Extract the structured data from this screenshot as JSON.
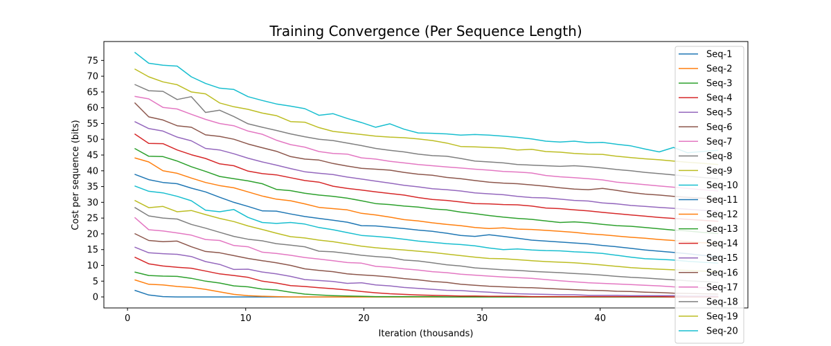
{
  "chart_data": {
    "type": "line",
    "title": "Training Convergence (Per Sequence Length)",
    "xlabel": "Iteration (thousands)",
    "ylabel": "Cost per sequence (bits)",
    "xlim": [
      -2,
      52.5
    ],
    "ylim": [
      -3.5,
      81
    ],
    "xticks": [
      0,
      10,
      20,
      30,
      40
    ],
    "yticks": [
      0,
      5,
      10,
      15,
      20,
      25,
      30,
      35,
      40,
      45,
      50,
      55,
      60,
      65,
      70,
      75
    ],
    "legend_position": "right",
    "grid": false,
    "x": [
      0.6,
      1.8,
      3.0,
      4.2,
      5.4,
      6.6,
      7.8,
      9.0,
      10.2,
      11.4,
      12.6,
      13.8,
      15.0,
      16.2,
      17.4,
      18.6,
      19.8,
      21.0,
      22.2,
      23.4,
      24.6,
      25.8,
      27.0,
      28.2,
      29.4,
      30.6,
      31.8,
      33.0,
      34.2,
      35.4,
      36.6,
      37.8,
      39.0,
      40.2,
      41.4,
      42.6,
      43.8,
      45.0,
      46.2,
      47.4,
      48.6,
      50.0
    ],
    "series": [
      {
        "name": "Seq-1",
        "color": "#1f77b4",
        "values": [
          2.1,
          0.6,
          0.1,
          0.0,
          0.0,
          0.0,
          0.0,
          0.0,
          0.0,
          0.0,
          0.0,
          0.0,
          0.0,
          0.0,
          0.0,
          0.0,
          0.0,
          0.0,
          0.0,
          0.0,
          0.0,
          0.0,
          0.0,
          0.0,
          0.0,
          0.0,
          0.0,
          0.0,
          0.0,
          0.0,
          0.0,
          0.0,
          0.0,
          0.0,
          0.0,
          0.0,
          0.0,
          0.0,
          0.0,
          0.0,
          0.0,
          0.0
        ]
      },
      {
        "name": "Seq-2",
        "color": "#ff7f0e",
        "values": [
          5.4,
          4.0,
          3.8,
          3.3,
          3.0,
          2.4,
          1.6,
          0.8,
          0.4,
          0.2,
          0.1,
          0.0,
          0.0,
          0.0,
          0.0,
          0.0,
          0.0,
          0.0,
          0.0,
          0.0,
          0.0,
          0.0,
          0.0,
          0.0,
          0.0,
          0.0,
          0.0,
          0.0,
          0.0,
          0.0,
          0.0,
          0.0,
          0.0,
          0.0,
          0.0,
          0.0,
          0.0,
          0.0,
          0.0,
          0.0,
          0.0,
          0.0
        ]
      },
      {
        "name": "Seq-3",
        "color": "#2ca02c",
        "values": [
          7.9,
          6.8,
          6.6,
          6.5,
          5.9,
          5.0,
          4.4,
          3.5,
          3.2,
          2.5,
          2.2,
          1.5,
          0.9,
          0.6,
          0.4,
          0.3,
          0.2,
          0.1,
          0.1,
          0.1,
          0.1,
          0.1,
          0.0,
          0.0,
          0.0,
          0.0,
          0.0,
          0.0,
          0.0,
          0.0,
          0.0,
          0.0,
          0.0,
          0.0,
          0.0,
          0.0,
          0.0,
          0.0,
          0.0,
          0.0,
          0.0,
          0.0
        ]
      },
      {
        "name": "Seq-4",
        "color": "#d62728",
        "values": [
          12.6,
          10.5,
          9.8,
          9.4,
          9.1,
          8.2,
          7.3,
          6.8,
          6.2,
          5.0,
          4.4,
          3.6,
          3.3,
          2.9,
          2.6,
          2.2,
          1.7,
          1.3,
          1.0,
          0.8,
          0.6,
          0.5,
          0.4,
          0.3,
          0.3,
          0.2,
          0.2,
          0.2,
          0.1,
          0.1,
          0.1,
          0.1,
          0.1,
          0.1,
          0.1,
          0.1,
          0.1,
          0.1,
          0.0,
          0.0,
          0.0,
          0.0
        ]
      },
      {
        "name": "Seq-5",
        "color": "#9467bd",
        "values": [
          15.8,
          14.0,
          13.7,
          13.5,
          12.8,
          11.2,
          10.3,
          8.7,
          8.8,
          7.9,
          7.3,
          6.5,
          5.5,
          5.2,
          4.9,
          4.3,
          4.5,
          3.8,
          3.5,
          3.0,
          2.7,
          2.4,
          2.1,
          2.0,
          1.7,
          1.5,
          1.2,
          1.0,
          0.9,
          0.8,
          0.7,
          0.7,
          0.5,
          0.5,
          0.5,
          0.4,
          0.4,
          0.4,
          0.4,
          0.3,
          0.3,
          0.3
        ]
      },
      {
        "name": "Seq-6",
        "color": "#8c564b",
        "values": [
          20.1,
          17.9,
          17.5,
          17.7,
          15.9,
          14.4,
          14.0,
          13.1,
          12.2,
          11.5,
          10.8,
          10.0,
          8.9,
          8.4,
          8.0,
          7.3,
          7.0,
          6.7,
          6.3,
          5.8,
          5.4,
          4.9,
          4.6,
          4.0,
          3.7,
          3.4,
          3.2,
          3.0,
          2.9,
          2.7,
          2.5,
          2.3,
          2.1,
          2.0,
          1.8,
          1.7,
          1.5,
          1.4,
          1.2,
          1.1,
          1.0,
          0.9
        ]
      },
      {
        "name": "Seq-7",
        "color": "#e377c2",
        "values": [
          25.2,
          21.3,
          20.9,
          20.3,
          19.6,
          18.2,
          17.9,
          16.3,
          15.9,
          14.2,
          13.8,
          13.2,
          12.5,
          12.0,
          11.5,
          10.9,
          10.7,
          9.7,
          9.4,
          8.9,
          8.5,
          8.0,
          7.7,
          7.2,
          6.9,
          6.6,
          6.3,
          6.1,
          5.9,
          5.5,
          5.1,
          4.8,
          4.5,
          4.3,
          4.1,
          3.9,
          3.7,
          3.5,
          3.2,
          3.0,
          2.9,
          2.7
        ]
      },
      {
        "name": "Seq-8",
        "color": "#7f7f7f",
        "values": [
          28.4,
          25.7,
          25.0,
          24.7,
          23.0,
          21.8,
          20.5,
          19.2,
          18.3,
          17.8,
          16.9,
          16.4,
          15.9,
          14.5,
          14.3,
          13.8,
          13.2,
          12.8,
          12.5,
          11.7,
          11.4,
          10.8,
          10.2,
          9.8,
          9.2,
          8.9,
          8.6,
          8.4,
          8.1,
          7.9,
          7.7,
          7.4,
          7.2,
          6.9,
          6.5,
          6.2,
          6.0,
          5.7,
          5.4,
          5.1,
          4.9,
          4.6
        ]
      },
      {
        "name": "Seq-9",
        "color": "#bcbd22",
        "values": [
          30.6,
          28.3,
          28.7,
          27.0,
          27.4,
          26.1,
          24.9,
          23.9,
          22.5,
          21.4,
          20.2,
          19.1,
          18.7,
          18.0,
          17.5,
          16.8,
          16.1,
          15.6,
          15.2,
          14.9,
          14.5,
          14.1,
          13.6,
          13.1,
          12.6,
          12.2,
          12.1,
          11.8,
          11.5,
          11.2,
          11.0,
          10.8,
          10.5,
          10.1,
          9.7,
          9.3,
          9.0,
          8.8,
          8.6,
          8.4,
          8.2,
          8.0
        ]
      },
      {
        "name": "Seq-10",
        "color": "#17becf",
        "values": [
          35.2,
          33.5,
          33.0,
          31.9,
          30.5,
          27.5,
          27.0,
          27.7,
          25.2,
          23.6,
          23.3,
          23.6,
          23.1,
          22.0,
          21.3,
          20.4,
          19.5,
          19.2,
          18.8,
          18.3,
          17.7,
          17.3,
          16.9,
          16.6,
          16.2,
          15.5,
          15.0,
          15.2,
          14.9,
          14.7,
          14.6,
          14.3,
          14.1,
          13.8,
          13.2,
          12.6,
          12.1,
          11.9,
          11.7,
          11.3,
          11.0,
          10.7
        ]
      },
      {
        "name": "Seq-11",
        "color": "#1f77b4",
        "values": [
          38.9,
          37.2,
          36.3,
          35.9,
          34.5,
          33.3,
          31.6,
          30.0,
          28.7,
          27.3,
          27.2,
          26.3,
          25.5,
          24.9,
          24.3,
          23.7,
          22.6,
          22.5,
          22.1,
          21.7,
          21.2,
          20.8,
          20.2,
          19.5,
          19.2,
          19.7,
          19.2,
          18.6,
          18.0,
          17.7,
          17.4,
          17.1,
          16.8,
          16.3,
          15.9,
          15.4,
          14.9,
          14.5,
          14.1,
          13.7,
          13.2,
          12.8
        ]
      },
      {
        "name": "Seq-12",
        "color": "#ff7f0e",
        "values": [
          44.1,
          42.8,
          40.0,
          39.2,
          37.7,
          36.3,
          35.3,
          34.6,
          33.3,
          32.0,
          31.0,
          30.5,
          29.5,
          28.4,
          28.0,
          27.6,
          26.5,
          26.0,
          25.3,
          24.5,
          24.1,
          23.5,
          23.0,
          22.6,
          22.0,
          21.7,
          21.9,
          21.5,
          21.4,
          21.1,
          20.8,
          20.5,
          20.0,
          19.7,
          19.3,
          18.9,
          18.6,
          18.2,
          17.9,
          17.5,
          17.2,
          16.9
        ]
      },
      {
        "name": "Seq-13",
        "color": "#2ca02c",
        "values": [
          47.1,
          44.6,
          44.5,
          43.1,
          41.3,
          39.8,
          38.2,
          37.5,
          36.8,
          35.9,
          34.1,
          33.7,
          32.9,
          32.3,
          31.9,
          31.3,
          30.5,
          29.6,
          29.3,
          28.8,
          28.5,
          27.9,
          27.6,
          26.9,
          26.4,
          25.8,
          25.3,
          24.9,
          24.6,
          24.1,
          23.6,
          23.8,
          23.5,
          23.0,
          22.6,
          22.4,
          22.0,
          21.6,
          21.2,
          20.9,
          20.5,
          20.1
        ]
      },
      {
        "name": "Seq-14",
        "color": "#d62728",
        "values": [
          51.7,
          48.7,
          48.6,
          46.6,
          45.1,
          43.9,
          42.2,
          41.6,
          39.9,
          39.1,
          38.7,
          37.8,
          36.9,
          36.4,
          35.1,
          34.4,
          33.9,
          33.3,
          32.8,
          32.3,
          31.5,
          30.9,
          30.6,
          30.1,
          29.6,
          29.5,
          29.3,
          29.2,
          28.8,
          28.2,
          28.0,
          27.6,
          27.3,
          26.8,
          26.4,
          26.0,
          25.6,
          25.2,
          24.9,
          24.6,
          24.3,
          24.0
        ]
      },
      {
        "name": "Seq-15",
        "color": "#9467bd",
        "values": [
          55.6,
          53.4,
          52.6,
          50.7,
          49.5,
          47.1,
          46.6,
          45.4,
          44.0,
          42.8,
          41.8,
          40.7,
          39.7,
          39.2,
          38.8,
          38.0,
          37.4,
          36.7,
          36.1,
          35.4,
          34.9,
          34.3,
          34.0,
          33.6,
          33.0,
          32.7,
          32.4,
          31.9,
          31.5,
          31.4,
          31.0,
          30.6,
          30.4,
          29.8,
          29.5,
          29.0,
          28.7,
          28.4,
          28.1,
          27.8,
          27.5,
          27.2
        ]
      },
      {
        "name": "Seq-16",
        "color": "#8c564b",
        "values": [
          61.6,
          57.1,
          56.1,
          54.3,
          53.8,
          51.4,
          50.9,
          50.0,
          48.5,
          47.3,
          46.2,
          44.5,
          43.7,
          43.4,
          42.3,
          41.5,
          40.8,
          40.5,
          40.2,
          39.5,
          38.9,
          38.6,
          37.9,
          37.5,
          36.9,
          36.4,
          36.1,
          35.9,
          35.5,
          35.1,
          34.6,
          34.2,
          34.0,
          34.4,
          33.8,
          33.1,
          32.6,
          32.3,
          31.9,
          31.6,
          31.3,
          31.0
        ]
      },
      {
        "name": "Seq-17",
        "color": "#e377c2",
        "values": [
          63.6,
          62.8,
          60.1,
          59.6,
          57.9,
          56.3,
          55.0,
          54.3,
          52.6,
          51.6,
          49.7,
          48.3,
          47.5,
          46.1,
          45.5,
          45.3,
          44.1,
          43.7,
          43.0,
          42.5,
          42.0,
          41.6,
          41.2,
          40.9,
          40.5,
          40.2,
          39.8,
          39.6,
          39.3,
          38.5,
          38.1,
          37.8,
          37.5,
          37.1,
          36.4,
          36.0,
          35.6,
          35.2,
          34.8,
          34.4,
          34.0,
          33.6
        ]
      },
      {
        "name": "Seq-18",
        "color": "#7f7f7f",
        "values": [
          67.4,
          65.4,
          65.2,
          62.6,
          63.5,
          58.5,
          59.2,
          57.2,
          54.9,
          53.8,
          52.8,
          51.7,
          50.8,
          50.0,
          49.6,
          48.8,
          48.0,
          47.1,
          46.5,
          46.0,
          45.3,
          44.8,
          44.6,
          43.9,
          43.1,
          42.8,
          42.5,
          42.0,
          41.8,
          41.6,
          41.4,
          41.6,
          41.3,
          40.9,
          40.4,
          40.0,
          39.5,
          39.1,
          38.7,
          38.3,
          37.9,
          37.5
        ]
      },
      {
        "name": "Seq-19",
        "color": "#bcbd22",
        "values": [
          72.3,
          69.8,
          68.2,
          67.3,
          65.0,
          64.4,
          61.5,
          60.3,
          59.5,
          58.3,
          57.5,
          55.6,
          55.4,
          53.7,
          52.5,
          52.0,
          51.5,
          51.0,
          50.7,
          50.5,
          50.1,
          49.6,
          48.8,
          47.7,
          47.6,
          47.4,
          47.2,
          46.6,
          46.8,
          46.1,
          45.9,
          45.5,
          45.3,
          45.2,
          44.6,
          44.2,
          43.8,
          43.5,
          43.1,
          42.7,
          42.4,
          42.0
        ]
      },
      {
        "name": "Seq-20",
        "color": "#17becf",
        "values": [
          77.6,
          74.1,
          73.5,
          73.2,
          69.8,
          67.7,
          66.2,
          65.8,
          63.5,
          62.3,
          61.2,
          60.5,
          59.7,
          57.6,
          58.1,
          56.6,
          55.3,
          53.8,
          54.9,
          53.2,
          52.0,
          51.9,
          51.7,
          51.3,
          51.5,
          51.3,
          51.0,
          50.6,
          50.1,
          49.4,
          49.1,
          49.4,
          48.9,
          49.0,
          48.4,
          47.9,
          46.9,
          46.0,
          47.4,
          45.7,
          46.1,
          46.5
        ]
      }
    ]
  }
}
